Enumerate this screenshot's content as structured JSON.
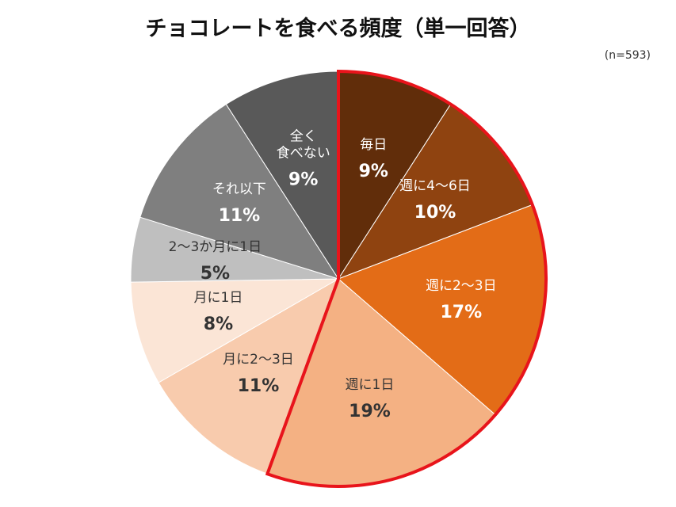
{
  "chart_data": {
    "type": "pie",
    "title": "チョコレートを食べる頻度（単一回答）",
    "subtitle": "(n=593)",
    "categories": [
      "毎日",
      "週に4～6日",
      "週に2～3日",
      "週に1日",
      "月に2～3日",
      "月に1日",
      "2～3か月に1日",
      "それ以下",
      "全く\n食べない"
    ],
    "values": [
      9,
      10,
      17,
      19,
      11,
      8,
      5,
      11,
      9
    ],
    "value_labels": [
      "9%",
      "10%",
      "17%",
      "19%",
      "11%",
      "8%",
      "5%",
      "11%",
      "9%"
    ],
    "colors": [
      "#612d0a",
      "#8f4310",
      "#e36c17",
      "#f4b183",
      "#f8cbad",
      "#fbe5d6",
      "#bfbfbf",
      "#7f7f7f",
      "#595959"
    ],
    "highlight_color": "#e8141b",
    "highlight_indices": [
      0,
      1,
      2,
      3
    ]
  }
}
